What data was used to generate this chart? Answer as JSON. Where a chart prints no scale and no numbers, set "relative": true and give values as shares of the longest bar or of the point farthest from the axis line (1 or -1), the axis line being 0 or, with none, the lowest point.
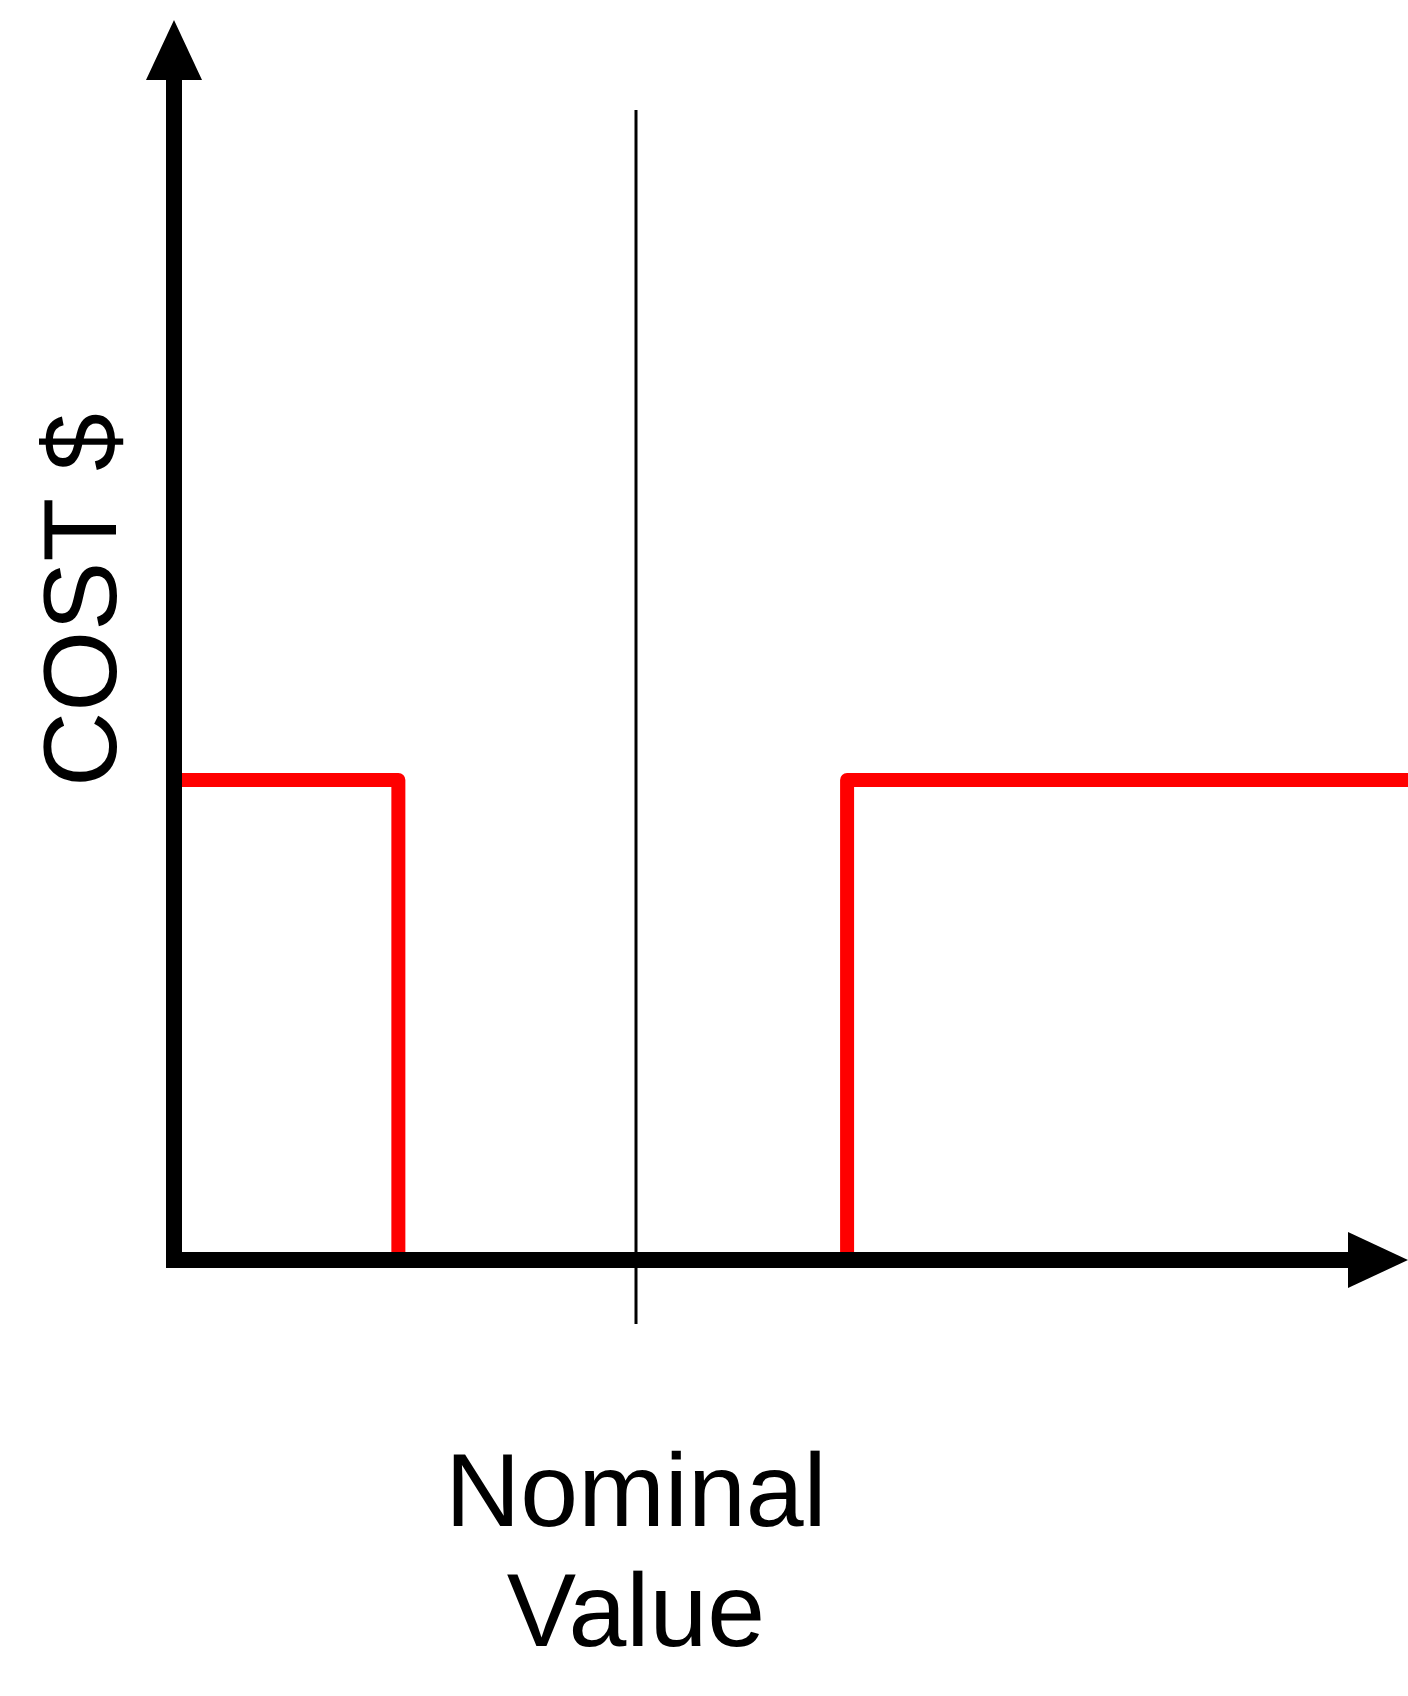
{
  "chart_data": {
    "type": "step",
    "relative": true,
    "xlabel": "Nominal Value",
    "ylabel": "COST $",
    "categories": [
      null,
      null,
      null,
      null,
      null,
      null,
      null,
      null,
      null,
      null,
      null,
      null
    ],
    "series": [
      {
        "color": "#ff0000",
        "values": [
          1,
          1,
          0,
          0,
          0,
          0,
          1,
          1,
          1,
          1,
          1,
          1
        ]
      }
    ],
    "marker": "none",
    "line_style": "solid"
  }
}
